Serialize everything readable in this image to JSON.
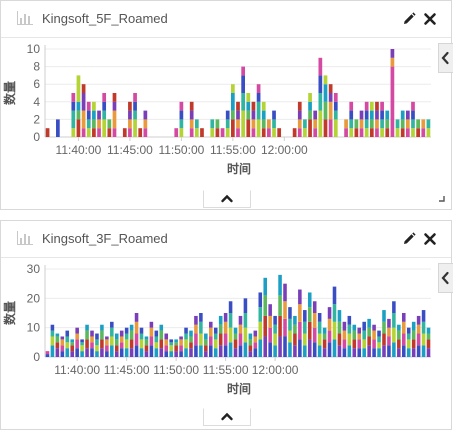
{
  "panels": [
    {
      "title": "Kingsoft_5F_Roamed",
      "edit_icon": "pencil-icon",
      "close_icon": "close-icon",
      "collapse_icon": "chevron-up-icon",
      "side_icon": "chevron-left-icon",
      "resize_icon": "resize-corner-icon"
    },
    {
      "title": "Kingsoft_3F_Roamed",
      "edit_icon": "pencil-icon",
      "close_icon": "close-icon",
      "collapse_icon": "chevron-up-icon",
      "side_icon": "chevron-left-icon"
    }
  ],
  "colors": [
    "#c0392b",
    "#3a4ec4",
    "#5cb85c",
    "#d44aa3",
    "#1ba0c4",
    "#e89a3c",
    "#b4d334",
    "#7a3fb8",
    "#32b5a0"
  ],
  "chart_data": [
    {
      "type": "bar",
      "stacked": true,
      "xlabel": "时间",
      "ylabel": "数量",
      "ylim": [
        0,
        10
      ],
      "yticks": [
        0,
        2,
        4,
        6,
        8,
        10
      ],
      "xticks": [
        "11:40:00",
        "11:45:00",
        "11:50:00",
        "11:55:00",
        "12:00:00"
      ],
      "xtick_index": [
        6,
        16,
        26,
        36,
        46
      ],
      "grid": true,
      "legend": "none",
      "totals": [
        1,
        0,
        2,
        0,
        0,
        5,
        7,
        6,
        4,
        4,
        3,
        5,
        2,
        5,
        0,
        1,
        4,
        5,
        1,
        3,
        0,
        0,
        0,
        0,
        0,
        1,
        4,
        0,
        4,
        2,
        1,
        0,
        2,
        2,
        1,
        3,
        6,
        4,
        8,
        5,
        4,
        6,
        4,
        2,
        3,
        1,
        0,
        0,
        1,
        4,
        2,
        5,
        3,
        9,
        7,
        6,
        5,
        0,
        2,
        4,
        2,
        3,
        4,
        4,
        4,
        4,
        3,
        10,
        2,
        3,
        3,
        4,
        2,
        2,
        2
      ],
      "values": [
        [
          1,
          0,
          0,
          0
        ],
        [
          0,
          0,
          0,
          0
        ],
        [
          0,
          0,
          2,
          0
        ],
        [
          0,
          0,
          0,
          0
        ],
        [
          0,
          0,
          0,
          0
        ],
        [
          1,
          2,
          1,
          1
        ],
        [
          2,
          1,
          1,
          3
        ],
        [
          1,
          2,
          2,
          1
        ],
        [
          1,
          1,
          1,
          1
        ],
        [
          1,
          1,
          1,
          1
        ],
        [
          1,
          1,
          1,
          0
        ],
        [
          2,
          1,
          1,
          1
        ],
        [
          1,
          1,
          0,
          0
        ],
        [
          1,
          2,
          1,
          1
        ],
        [
          0,
          0,
          0,
          0
        ],
        [
          1,
          0,
          0,
          0
        ],
        [
          1,
          1,
          1,
          1
        ],
        [
          2,
          1,
          1,
          1
        ],
        [
          1,
          0,
          0,
          0
        ],
        [
          1,
          1,
          1,
          0
        ],
        [
          0,
          0,
          0,
          0
        ],
        [
          0,
          0,
          0,
          0
        ],
        [
          0,
          0,
          0,
          0
        ],
        [
          0,
          0,
          0,
          0
        ],
        [
          0,
          0,
          0,
          0
        ],
        [
          1,
          0,
          0,
          0
        ],
        [
          1,
          1,
          1,
          1
        ],
        [
          0,
          0,
          0,
          0
        ],
        [
          1,
          1,
          1,
          1
        ],
        [
          1,
          1,
          0,
          0
        ],
        [
          1,
          0,
          0,
          0
        ],
        [
          0,
          0,
          0,
          0
        ],
        [
          1,
          1,
          0,
          0
        ],
        [
          1,
          1,
          0,
          0
        ],
        [
          1,
          0,
          0,
          0
        ],
        [
          1,
          1,
          1,
          0
        ],
        [
          2,
          1,
          2,
          1
        ],
        [
          1,
          1,
          1,
          1
        ],
        [
          3,
          2,
          2,
          1
        ],
        [
          2,
          1,
          1,
          1
        ],
        [
          1,
          1,
          1,
          1
        ],
        [
          2,
          2,
          1,
          1
        ],
        [
          1,
          1,
          1,
          1
        ],
        [
          1,
          1,
          0,
          0
        ],
        [
          1,
          1,
          1,
          0
        ],
        [
          1,
          0,
          0,
          0
        ],
        [
          0,
          0,
          0,
          0
        ],
        [
          0,
          0,
          0,
          0
        ],
        [
          1,
          0,
          0,
          0
        ],
        [
          1,
          1,
          1,
          1
        ],
        [
          1,
          1,
          0,
          0
        ],
        [
          2,
          1,
          1,
          1
        ],
        [
          1,
          1,
          1,
          0
        ],
        [
          3,
          2,
          2,
          2
        ],
        [
          2,
          2,
          2,
          1
        ],
        [
          2,
          2,
          1,
          1
        ],
        [
          2,
          1,
          1,
          1
        ],
        [
          0,
          0,
          0,
          0
        ],
        [
          1,
          1,
          0,
          0
        ],
        [
          1,
          1,
          1,
          1
        ],
        [
          1,
          1,
          0,
          0
        ],
        [
          1,
          1,
          1,
          0
        ],
        [
          1,
          1,
          1,
          1
        ],
        [
          1,
          1,
          1,
          1
        ],
        [
          1,
          1,
          1,
          1
        ],
        [
          1,
          1,
          1,
          1
        ],
        [
          1,
          1,
          1,
          0
        ],
        [
          8,
          1,
          1,
          0
        ],
        [
          1,
          1,
          0,
          0
        ],
        [
          1,
          1,
          1,
          0
        ],
        [
          1,
          1,
          1,
          0
        ],
        [
          1,
          1,
          1,
          1
        ],
        [
          1,
          1,
          0,
          0
        ],
        [
          1,
          1,
          0,
          0
        ],
        [
          1,
          1,
          0,
          0
        ]
      ]
    },
    {
      "type": "bar",
      "stacked": true,
      "xlabel": "时间",
      "ylabel": "数量",
      "ylim": [
        0,
        30
      ],
      "yticks": [
        0,
        10,
        20,
        30
      ],
      "xticks": [
        "11:40:00",
        "11:45:00",
        "11:50:00",
        "11:55:00",
        "12:00:00"
      ],
      "xtick_index": [
        6,
        16,
        26,
        36,
        46
      ],
      "grid": true,
      "legend": "none",
      "totals": [
        2,
        11,
        8,
        7,
        9,
        6,
        10,
        6,
        11,
        9,
        8,
        11,
        7,
        12,
        8,
        9,
        10,
        11,
        15,
        10,
        7,
        12,
        9,
        11,
        8,
        6,
        6,
        7,
        10,
        9,
        14,
        15,
        8,
        12,
        10,
        14,
        15,
        19,
        10,
        14,
        20,
        8,
        9,
        22,
        27,
        18,
        14,
        28,
        25,
        17,
        14,
        23,
        16,
        22,
        19,
        15,
        10,
        17,
        24,
        16,
        12,
        14,
        11,
        10,
        12,
        13,
        11,
        9,
        16,
        13,
        19,
        11,
        15,
        10,
        12,
        14,
        16,
        10
      ],
      "values": [
        [
          1,
          1,
          0,
          0
        ],
        [
          4,
          3,
          2,
          2
        ],
        [
          3,
          2,
          2,
          1
        ],
        [
          2,
          2,
          2,
          1
        ],
        [
          3,
          2,
          2,
          2
        ],
        [
          2,
          2,
          1,
          1
        ],
        [
          3,
          3,
          2,
          2
        ],
        [
          2,
          2,
          1,
          1
        ],
        [
          3,
          3,
          3,
          2
        ],
        [
          3,
          2,
          2,
          2
        ],
        [
          2,
          2,
          2,
          2
        ],
        [
          3,
          3,
          3,
          2
        ],
        [
          2,
          2,
          2,
          1
        ],
        [
          4,
          3,
          3,
          2
        ],
        [
          2,
          2,
          2,
          2
        ],
        [
          3,
          2,
          2,
          2
        ],
        [
          3,
          3,
          2,
          2
        ],
        [
          3,
          3,
          3,
          2
        ],
        [
          4,
          4,
          4,
          3
        ],
        [
          3,
          3,
          2,
          2
        ],
        [
          2,
          2,
          2,
          1
        ],
        [
          4,
          3,
          3,
          2
        ],
        [
          3,
          2,
          2,
          2
        ],
        [
          3,
          3,
          3,
          2
        ],
        [
          2,
          2,
          2,
          2
        ],
        [
          2,
          2,
          1,
          1
        ],
        [
          2,
          2,
          1,
          1
        ],
        [
          2,
          2,
          2,
          1
        ],
        [
          3,
          3,
          2,
          2
        ],
        [
          3,
          2,
          2,
          2
        ],
        [
          4,
          4,
          3,
          3
        ],
        [
          4,
          4,
          4,
          3
        ],
        [
          2,
          2,
          2,
          2
        ],
        [
          4,
          3,
          3,
          2
        ],
        [
          3,
          3,
          2,
          2
        ],
        [
          4,
          4,
          3,
          3
        ],
        [
          4,
          4,
          4,
          3
        ],
        [
          5,
          5,
          5,
          4
        ],
        [
          3,
          3,
          2,
          2
        ],
        [
          4,
          4,
          3,
          3
        ],
        [
          5,
          5,
          5,
          5
        ],
        [
          2,
          2,
          2,
          2
        ],
        [
          3,
          2,
          2,
          2
        ],
        [
          6,
          6,
          5,
          5
        ],
        [
          7,
          7,
          7,
          6
        ],
        [
          5,
          5,
          4,
          4
        ],
        [
          4,
          4,
          3,
          3
        ],
        [
          7,
          7,
          7,
          7
        ],
        [
          7,
          6,
          6,
          6
        ],
        [
          5,
          4,
          4,
          4
        ],
        [
          4,
          4,
          3,
          3
        ],
        [
          6,
          6,
          6,
          5
        ],
        [
          4,
          4,
          4,
          4
        ],
        [
          6,
          6,
          5,
          5
        ],
        [
          5,
          5,
          5,
          4
        ],
        [
          4,
          4,
          4,
          3
        ],
        [
          3,
          3,
          2,
          2
        ],
        [
          5,
          4,
          4,
          4
        ],
        [
          6,
          6,
          6,
          6
        ],
        [
          4,
          4,
          4,
          4
        ],
        [
          3,
          3,
          3,
          3
        ],
        [
          4,
          4,
          3,
          3
        ],
        [
          3,
          3,
          3,
          2
        ],
        [
          3,
          3,
          2,
          2
        ],
        [
          3,
          3,
          3,
          3
        ],
        [
          4,
          3,
          3,
          3
        ],
        [
          3,
          3,
          3,
          2
        ],
        [
          3,
          2,
          2,
          2
        ],
        [
          4,
          4,
          4,
          4
        ],
        [
          4,
          3,
          3,
          3
        ],
        [
          5,
          5,
          5,
          4
        ],
        [
          3,
          3,
          3,
          2
        ],
        [
          4,
          4,
          4,
          3
        ],
        [
          3,
          3,
          2,
          2
        ],
        [
          3,
          3,
          3,
          3
        ],
        [
          4,
          4,
          3,
          3
        ],
        [
          4,
          4,
          4,
          4
        ],
        [
          3,
          3,
          2,
          2
        ]
      ]
    }
  ]
}
